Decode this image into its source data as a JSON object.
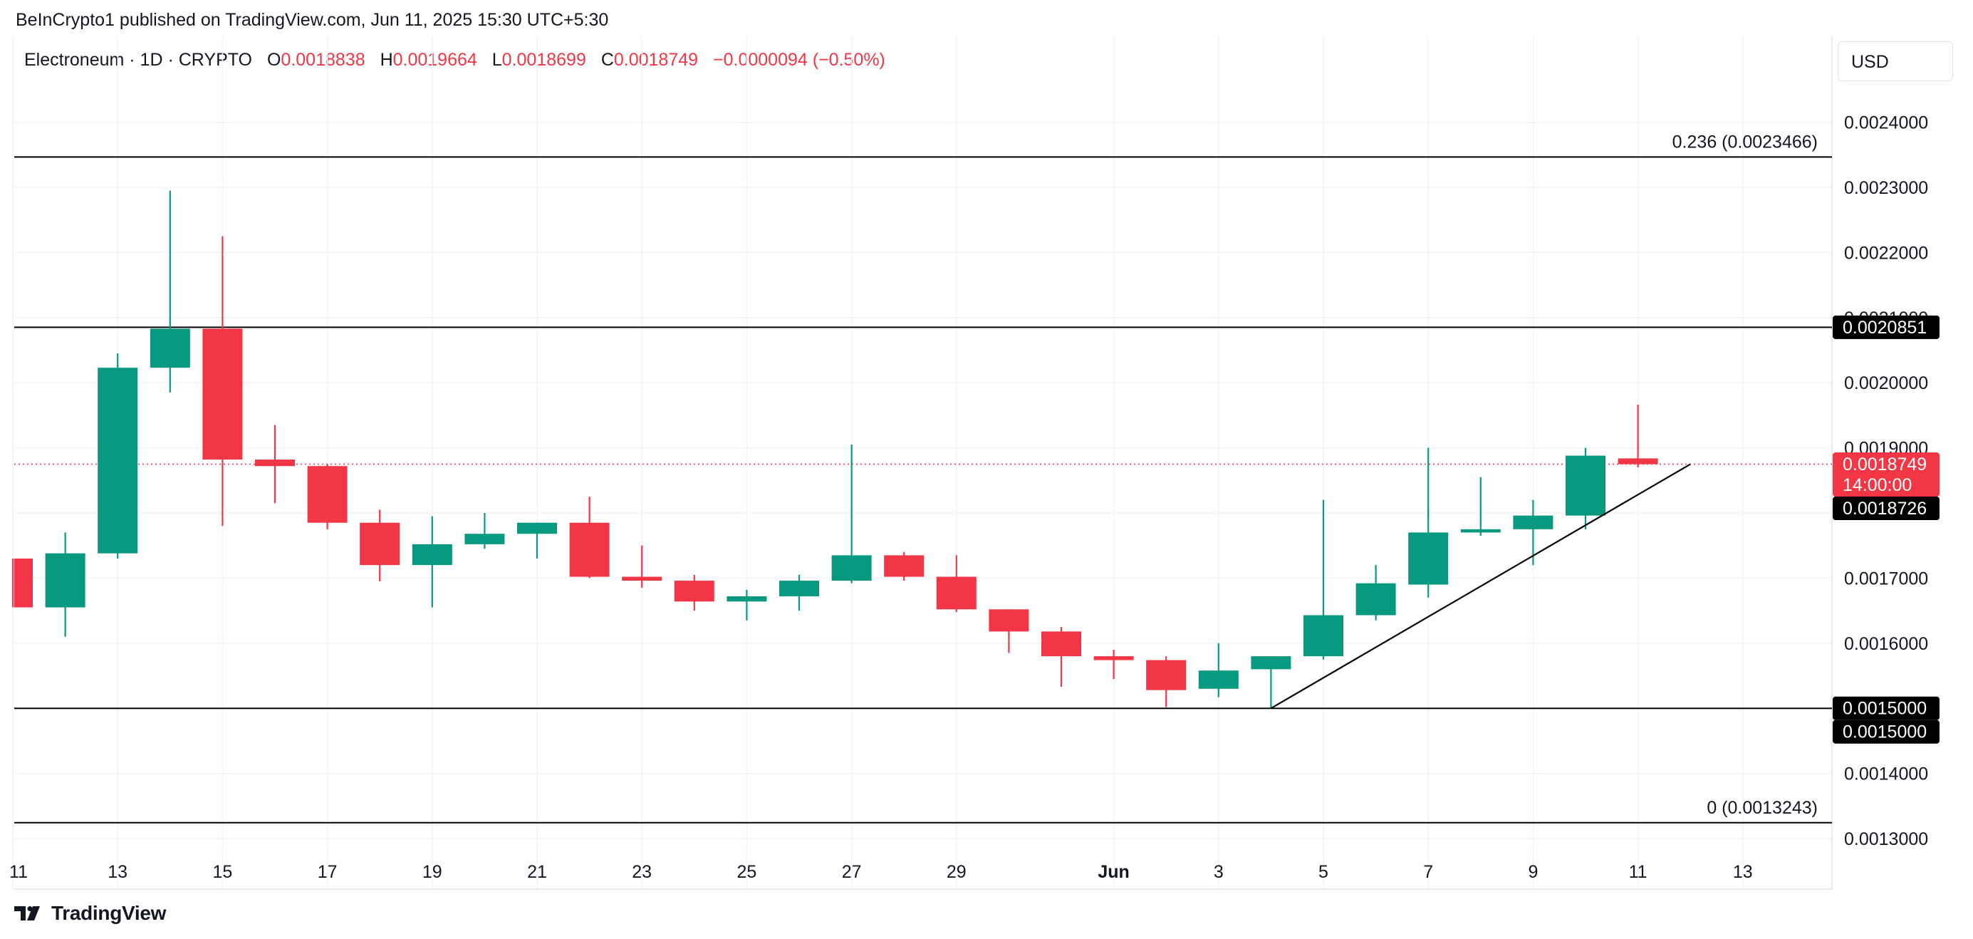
{
  "header": {
    "publisher": "BeInCrypto1 published on TradingView.com, Jun 11, 2025 15:30 UTC+5:30"
  },
  "legend": {
    "symbol": "Electroneum · 1D · CRYPTO",
    "open_label": "O",
    "open": "0.0018838",
    "high_label": "H",
    "high": "0.0019664",
    "low_label": "L",
    "low": "0.0018699",
    "close_label": "C",
    "close": "0.0018749",
    "change": "−0.0000094 (−0.50%)"
  },
  "currency": "USD",
  "brand": "TradingView",
  "colors": {
    "up": "#089981",
    "down": "#f23645",
    "grid": "#f0f3fa",
    "line": "#000000",
    "badge_dark": "#000000",
    "badge_price": "#f23645"
  },
  "chart_data": {
    "type": "candlestick",
    "symbol": "Electroneum",
    "interval": "1D",
    "ylim": [
      0.00125,
      0.0025
    ],
    "y_ticks": [
      "0.0013000",
      "0.0014000",
      "0.0015000",
      "0.0016000",
      "0.0017000",
      "0.0018000",
      "0.0019000",
      "0.0020000",
      "0.0021000",
      "0.0022000",
      "0.0023000",
      "0.0024000"
    ],
    "x_tick_labels": [
      {
        "day": 0,
        "label": "11"
      },
      {
        "day": 2,
        "label": "13"
      },
      {
        "day": 4,
        "label": "15"
      },
      {
        "day": 6,
        "label": "17"
      },
      {
        "day": 8,
        "label": "19"
      },
      {
        "day": 10,
        "label": "21"
      },
      {
        "day": 12,
        "label": "23"
      },
      {
        "day": 14,
        "label": "25"
      },
      {
        "day": 16,
        "label": "27"
      },
      {
        "day": 18,
        "label": "29"
      },
      {
        "day": 21,
        "label": "Jun"
      },
      {
        "day": 23,
        "label": "3"
      },
      {
        "day": 25,
        "label": "5"
      },
      {
        "day": 27,
        "label": "7"
      },
      {
        "day": 29,
        "label": "9"
      },
      {
        "day": 31,
        "label": "11"
      },
      {
        "day": 33,
        "label": "13"
      }
    ],
    "candles": [
      {
        "date": "2025-05-11",
        "o": 0.00173,
        "h": 0.00173,
        "l": 0.001655,
        "c": 0.001655
      },
      {
        "date": "2025-05-12",
        "o": 0.001655,
        "h": 0.00177,
        "l": 0.00161,
        "c": 0.001738
      },
      {
        "date": "2025-05-13",
        "o": 0.001738,
        "h": 0.002045,
        "l": 0.00173,
        "c": 0.002023
      },
      {
        "date": "2025-05-14",
        "o": 0.002023,
        "h": 0.002295,
        "l": 0.001985,
        "c": 0.002083
      },
      {
        "date": "2025-05-15",
        "o": 0.002083,
        "h": 0.002225,
        "l": 0.00178,
        "c": 0.001882
      },
      {
        "date": "2025-05-16",
        "o": 0.001882,
        "h": 0.001935,
        "l": 0.001815,
        "c": 0.001872
      },
      {
        "date": "2025-05-17",
        "o": 0.001872,
        "h": 0.001875,
        "l": 0.001775,
        "c": 0.001785
      },
      {
        "date": "2025-05-18",
        "o": 0.001785,
        "h": 0.001805,
        "l": 0.001695,
        "c": 0.00172
      },
      {
        "date": "2025-05-19",
        "o": 0.00172,
        "h": 0.001795,
        "l": 0.001655,
        "c": 0.001752
      },
      {
        "date": "2025-05-20",
        "o": 0.001752,
        "h": 0.0018,
        "l": 0.001745,
        "c": 0.001768
      },
      {
        "date": "2025-05-21",
        "o": 0.001768,
        "h": 0.001785,
        "l": 0.00173,
        "c": 0.001785
      },
      {
        "date": "2025-05-22",
        "o": 0.001785,
        "h": 0.001825,
        "l": 0.0017,
        "c": 0.001702
      },
      {
        "date": "2025-05-23",
        "o": 0.001702,
        "h": 0.00175,
        "l": 0.001685,
        "c": 0.001696
      },
      {
        "date": "2025-05-24",
        "o": 0.001696,
        "h": 0.001705,
        "l": 0.00165,
        "c": 0.001664
      },
      {
        "date": "2025-05-25",
        "o": 0.001664,
        "h": 0.001682,
        "l": 0.001635,
        "c": 0.001672
      },
      {
        "date": "2025-05-26",
        "o": 0.001672,
        "h": 0.001705,
        "l": 0.00165,
        "c": 0.001696
      },
      {
        "date": "2025-05-27",
        "o": 0.001696,
        "h": 0.001905,
        "l": 0.001692,
        "c": 0.001735
      },
      {
        "date": "2025-05-28",
        "o": 0.001735,
        "h": 0.00174,
        "l": 0.001696,
        "c": 0.001702
      },
      {
        "date": "2025-05-29",
        "o": 0.001702,
        "h": 0.001735,
        "l": 0.001648,
        "c": 0.001652
      },
      {
        "date": "2025-05-30",
        "o": 0.001652,
        "h": 0.001652,
        "l": 0.001585,
        "c": 0.001618
      },
      {
        "date": "2025-05-31",
        "o": 0.001618,
        "h": 0.001625,
        "l": 0.001533,
        "c": 0.00158
      },
      {
        "date": "2025-06-01",
        "o": 0.00158,
        "h": 0.00159,
        "l": 0.001545,
        "c": 0.001574
      },
      {
        "date": "2025-06-02",
        "o": 0.001574,
        "h": 0.00158,
        "l": 0.001502,
        "c": 0.001528
      },
      {
        "date": "2025-06-03",
        "o": 0.00153,
        "h": 0.0016,
        "l": 0.001517,
        "c": 0.001558
      },
      {
        "date": "2025-06-04",
        "o": 0.00156,
        "h": 0.00158,
        "l": 0.0015,
        "c": 0.00158
      },
      {
        "date": "2025-06-05",
        "o": 0.00158,
        "h": 0.00182,
        "l": 0.001575,
        "c": 0.001643
      },
      {
        "date": "2025-06-06",
        "o": 0.001643,
        "h": 0.00172,
        "l": 0.001635,
        "c": 0.001692
      },
      {
        "date": "2025-06-07",
        "o": 0.00169,
        "h": 0.0019,
        "l": 0.00167,
        "c": 0.00177
      },
      {
        "date": "2025-06-08",
        "o": 0.00177,
        "h": 0.001855,
        "l": 0.001765,
        "c": 0.001775
      },
      {
        "date": "2025-06-09",
        "o": 0.001775,
        "h": 0.00182,
        "l": 0.00172,
        "c": 0.001796
      },
      {
        "date": "2025-06-10",
        "o": 0.001796,
        "h": 0.0019,
        "l": 0.001775,
        "c": 0.001888
      },
      {
        "date": "2025-06-11",
        "o": 0.0018838,
        "h": 0.0019664,
        "l": 0.0018699,
        "c": 0.0018749
      }
    ],
    "horizontal_lines": [
      {
        "price": 0.0023466,
        "label": "0.236 (0.0023466)"
      },
      {
        "price": 0.0020851,
        "label": ""
      },
      {
        "price": 0.0015,
        "label": ""
      },
      {
        "price": 0.0013243,
        "label": "0 (0.0013243)"
      }
    ],
    "trendline": {
      "from": {
        "day": 24,
        "price": 0.0015
      },
      "to": {
        "day": 32,
        "price": 0.0018749
      }
    },
    "current_price_line": 0.0018749,
    "price_badges": [
      {
        "price": 0.0020851,
        "text": "0.0020851",
        "style": "dark"
      },
      {
        "price": 0.0018749,
        "text": "0.0018749",
        "sub": "14:00:00",
        "style": "price"
      },
      {
        "price": 0.0018726,
        "text": "0.0018726",
        "style": "dark"
      },
      {
        "price": 0.0015,
        "text": "0.0015000",
        "style": "dark"
      },
      {
        "price": 0.0015,
        "text": "0.0015000",
        "style": "dark"
      }
    ]
  }
}
